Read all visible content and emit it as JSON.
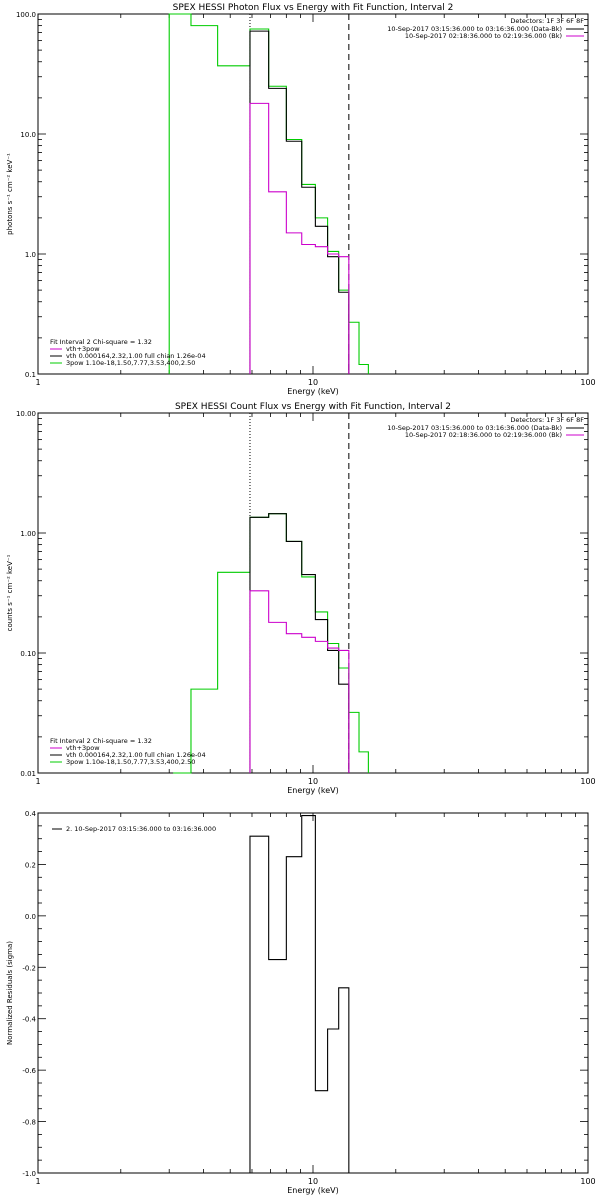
{
  "colors": {
    "black": "#000000",
    "green": "#00cc00",
    "magenta": "#cc00cc",
    "background": "#ffffff"
  },
  "chart_data": [
    {
      "type": "line",
      "id": "photon",
      "title": "SPEX HESSI Photon Flux vs Energy with Fit Function, Interval 2",
      "xlabel": "Energy (keV)",
      "ylabel": "photons s⁻¹ cm⁻² keV⁻¹",
      "x_scale": "log",
      "y_scale": "log",
      "xlim": [
        1,
        100
      ],
      "ylim": [
        0.1,
        100
      ],
      "x_ticks": [
        {
          "v": 1,
          "label": "1"
        },
        {
          "v": 10,
          "label": "10"
        },
        {
          "v": 100,
          "label": "100"
        }
      ],
      "y_ticks": [
        {
          "v": 0.1,
          "label": "0.1"
        },
        {
          "v": 1,
          "label": "1.0"
        },
        {
          "v": 10,
          "label": "10.0"
        },
        {
          "v": 100,
          "label": "100.0"
        }
      ],
      "vlines": [
        {
          "x": 5.9,
          "style": "dotted"
        },
        {
          "x": 13.5,
          "style": "dashed"
        }
      ],
      "legend_top": {
        "header": "Detectors: 1F 3F 6F 8F",
        "entries": [
          {
            "label": "10-Sep-2017 03:15:36.000 to 03:16:36.000 (Data-Bk)",
            "color": "#000000"
          },
          {
            "label": "10-Sep-2017 02:18:36.000 to 02:19:36.000 (Bk)",
            "color": "#cc00cc"
          }
        ]
      },
      "legend_bottom": {
        "header": "Fit Interval  2   Chi-square = 1.32",
        "entries": [
          {
            "label": "vth+3pow",
            "color": "#cc00cc"
          },
          {
            "label": "vth 0.000164,2.32,1.00  full chian 1.26e-04",
            "color": "#000000"
          },
          {
            "label": "3pow 1.10e-18,1.50,7.77,3.53,400,2.50",
            "color": "#00cc00"
          }
        ]
      },
      "series": [
        {
          "color": "#00cc00",
          "edges": [
            3.0,
            3.6,
            4.5,
            5.9,
            6.9,
            8.0,
            9.1,
            10.2,
            11.3,
            12.4,
            13.5,
            14.7,
            15.9
          ],
          "values": [
            100,
            80,
            37,
            75,
            25,
            9,
            3.8,
            2,
            1.05,
            0.5,
            0.27,
            0.12
          ]
        },
        {
          "color": "#000000",
          "edges": [
            5.9,
            6.9,
            8.0,
            9.1,
            10.2,
            11.3,
            12.4,
            13.5
          ],
          "values": [
            72,
            24,
            8.7,
            3.6,
            1.7,
            0.95,
            0.48
          ]
        },
        {
          "color": "#cc00cc",
          "edges": [
            5.9,
            6.9,
            8.0,
            9.1,
            10.2,
            11.3,
            12.4,
            13.5
          ],
          "values": [
            18,
            3.3,
            1.5,
            1.2,
            1.15,
            1.0,
            0.95
          ]
        }
      ]
    },
    {
      "type": "line",
      "id": "count",
      "title": "SPEX HESSI Count Flux vs Energy with Fit Function, Interval 2",
      "xlabel": "Energy (keV)",
      "ylabel": "counts s⁻¹ cm⁻² keV⁻¹",
      "x_scale": "log",
      "y_scale": "log",
      "xlim": [
        1,
        100
      ],
      "ylim": [
        0.01,
        10
      ],
      "x_ticks": [
        {
          "v": 1,
          "label": "1"
        },
        {
          "v": 10,
          "label": "10"
        },
        {
          "v": 100,
          "label": "100"
        }
      ],
      "y_ticks": [
        {
          "v": 0.01,
          "label": "0.01"
        },
        {
          "v": 0.1,
          "label": "0.10"
        },
        {
          "v": 1,
          "label": "1.00"
        },
        {
          "v": 10,
          "label": "10.00"
        }
      ],
      "vlines": [
        {
          "x": 5.9,
          "style": "dotted"
        },
        {
          "x": 13.5,
          "style": "dashed"
        }
      ],
      "legend_top": {
        "header": "Detectors: 1F 3F 6F 8F",
        "entries": [
          {
            "label": "10-Sep-2017 03:15:36.000 to 03:16:36.000 (Data-Bk)",
            "color": "#000000"
          },
          {
            "label": "10-Sep-2017 02:18:36.000 to 02:19:36.000 (Bk)",
            "color": "#cc00cc"
          }
        ]
      },
      "legend_bottom": {
        "header": "Fit Interval  2   Chi-square = 1.32",
        "entries": [
          {
            "label": "vth+3pow",
            "color": "#cc00cc"
          },
          {
            "label": "vth 0.000164,2.32,1.00  full chian 1.26e-04",
            "color": "#000000"
          },
          {
            "label": "3pow 1.10e-18,1.50,7.77,3.53,400,2.50",
            "color": "#00cc00"
          }
        ]
      },
      "series": [
        {
          "color": "#00cc00",
          "edges": [
            3.1,
            3.6,
            4.5,
            5.9,
            6.9,
            8.0,
            9.1,
            10.2,
            11.3,
            12.4,
            13.5,
            14.7,
            15.9
          ],
          "values": [
            0.01,
            0.05,
            0.47,
            1.35,
            1.45,
            0.85,
            0.43,
            0.22,
            0.12,
            0.075,
            0.032,
            0.015
          ]
        },
        {
          "color": "#000000",
          "edges": [
            5.9,
            6.9,
            8.0,
            9.1,
            10.2,
            11.3,
            12.4,
            13.5
          ],
          "values": [
            1.35,
            1.45,
            0.85,
            0.45,
            0.19,
            0.105,
            0.055
          ]
        },
        {
          "color": "#cc00cc",
          "edges": [
            5.9,
            6.9,
            8.0,
            9.1,
            10.2,
            11.3,
            12.4,
            13.5
          ],
          "values": [
            0.33,
            0.18,
            0.145,
            0.135,
            0.125,
            0.11,
            0.105
          ]
        }
      ]
    },
    {
      "type": "line",
      "id": "residuals",
      "title": "",
      "xlabel": "Energy (keV)",
      "ylabel": "Normalized Residuals (sigma)",
      "x_scale": "log",
      "y_scale": "linear",
      "xlim": [
        1,
        100
      ],
      "ylim": [
        -1.0,
        0.4
      ],
      "x_ticks": [
        {
          "v": 1,
          "label": "1"
        },
        {
          "v": 10,
          "label": "10"
        },
        {
          "v": 100,
          "label": "100"
        }
      ],
      "y_ticks": [
        {
          "v": -1,
          "label": "-1.0"
        },
        {
          "v": -0.8,
          "label": "-0.8"
        },
        {
          "v": -0.6,
          "label": "-0.6"
        },
        {
          "v": -0.4,
          "label": "-0.4"
        },
        {
          "v": -0.2,
          "label": "-0.2"
        },
        {
          "v": 0,
          "label": "0.0"
        },
        {
          "v": 0.2,
          "label": "0.2"
        },
        {
          "v": 0.4,
          "label": "0.4"
        }
      ],
      "legend_top_left": "2. 10-Sep-2017 03:15:36.000 to 03:16:36.000",
      "series": [
        {
          "color": "#000000",
          "edges": [
            5.9,
            6.9,
            8.0,
            9.1,
            10.2,
            11.3,
            12.4,
            13.5
          ],
          "values": [
            0.31,
            -0.17,
            0.23,
            0.39,
            -0.68,
            -0.44,
            -0.28
          ]
        }
      ]
    }
  ]
}
